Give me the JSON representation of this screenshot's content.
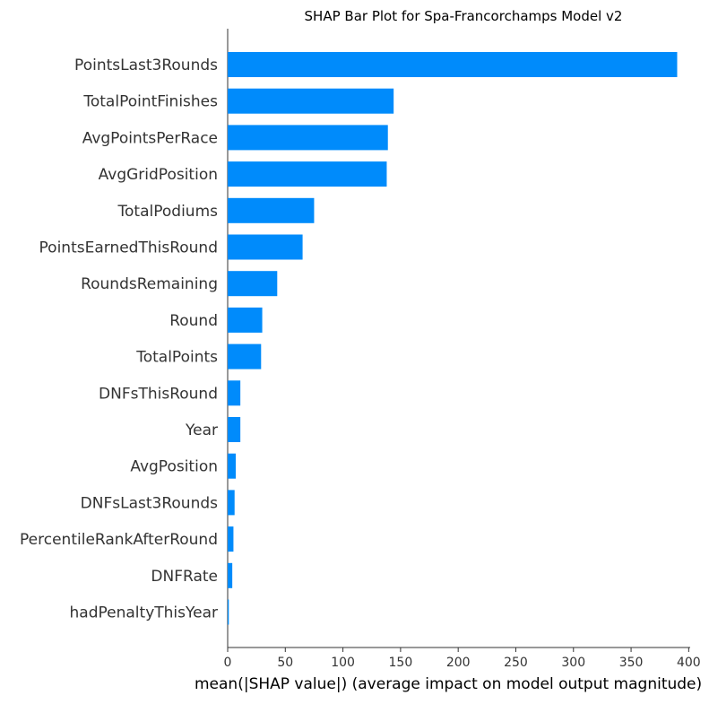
{
  "chart_data": {
    "type": "bar",
    "orientation": "horizontal",
    "title": "SHAP Bar Plot for Spa-Francorchamps Model v2",
    "xlabel": "mean(|SHAP value|) (average impact on model output magnitude)",
    "ylabel": "",
    "xlim": [
      0,
      410
    ],
    "xticks": [
      0,
      50,
      100,
      150,
      200,
      250,
      300,
      350,
      400
    ],
    "grid": false,
    "bar_color": "#008bfb",
    "categories": [
      "PointsLast3Rounds",
      "TotalPointFinishes",
      "AvgPointsPerRace",
      "AvgGridPosition",
      "TotalPodiums",
      "PointsEarnedThisRound",
      "RoundsRemaining",
      "Round",
      "TotalPoints",
      "DNFsThisRound",
      "Year",
      "AvgPosition",
      "DNFsLast3Rounds",
      "PercentileRankAfterRound",
      "DNFRate",
      "hadPenaltyThisYear"
    ],
    "values": [
      390,
      144,
      139,
      138,
      75,
      65,
      43,
      30,
      29,
      11,
      11,
      7,
      6,
      5,
      4,
      1
    ]
  }
}
